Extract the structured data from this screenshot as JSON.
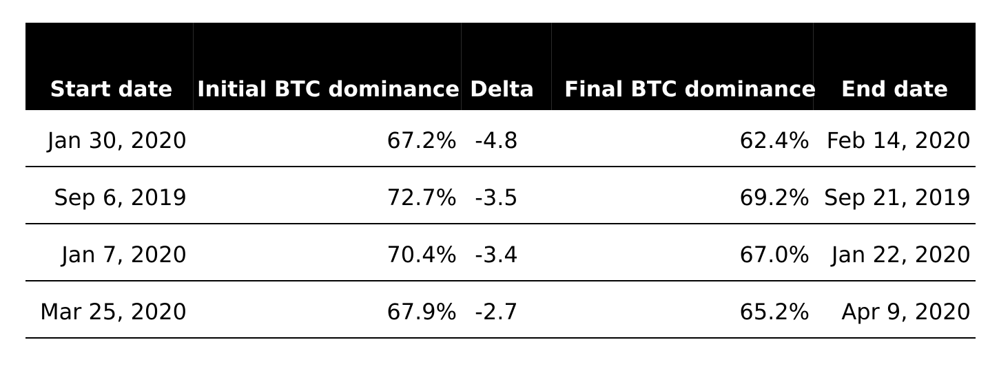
{
  "table": {
    "headers": [
      "Start date",
      "Initial BTC dominance",
      "Delta",
      "Final BTC dominance",
      "End date"
    ],
    "rows": [
      [
        "Jan 30, 2020",
        "67.2%",
        "-4.8",
        "62.4%",
        "Feb 14, 2020"
      ],
      [
        "Sep 6, 2019",
        "72.7%",
        "-3.5",
        "69.2%",
        "Sep 21, 2019"
      ],
      [
        "Jan 7, 2020",
        "70.4%",
        "-3.4",
        "67.0%",
        "Jan 22, 2020"
      ],
      [
        "Mar 25, 2020",
        "67.9%",
        "-2.7",
        "65.2%",
        "Apr 9, 2020"
      ]
    ]
  },
  "colors": {
    "header_background": "#000000",
    "header_text": "#ffffff",
    "body_text": "#000000",
    "row_divider": "#000000"
  }
}
